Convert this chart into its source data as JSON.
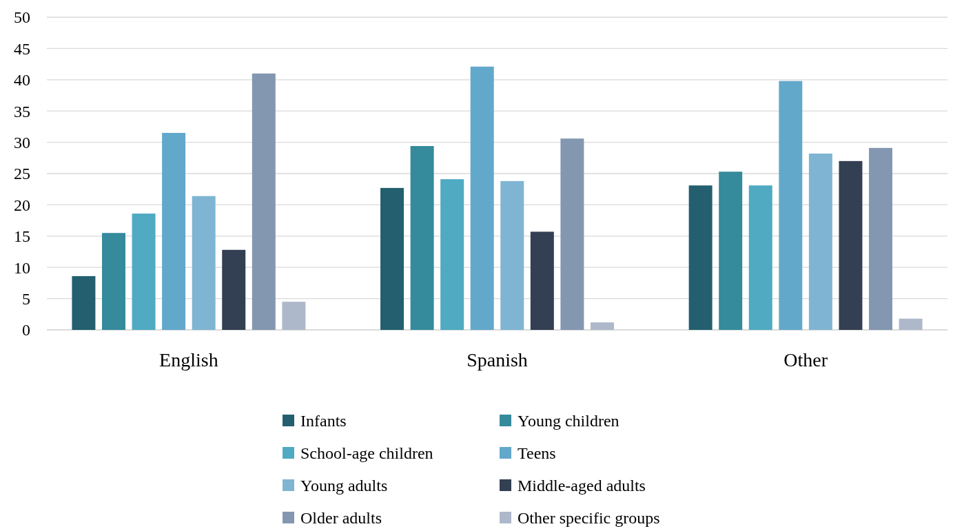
{
  "chart_data": {
    "type": "bar",
    "categories": [
      "English",
      "Spanish",
      "Other"
    ],
    "series": [
      {
        "name": "Infants",
        "color": "#235f6e",
        "values": [
          8.6,
          22.7,
          23.1
        ]
      },
      {
        "name": "Young children",
        "color": "#358a9c",
        "values": [
          15.5,
          29.4,
          25.3
        ]
      },
      {
        "name": "School-age children",
        "color": "#4faac2",
        "values": [
          18.6,
          24.1,
          23.1
        ]
      },
      {
        "name": "Teens",
        "color": "#62a8cb",
        "values": [
          31.5,
          42.1,
          39.8
        ]
      },
      {
        "name": "Young adults",
        "color": "#7fb5d3",
        "values": [
          21.4,
          23.8,
          28.2
        ]
      },
      {
        "name": "Middle-aged adults",
        "color": "#333f52",
        "values": [
          12.8,
          15.7,
          27.0
        ]
      },
      {
        "name": "Older adults",
        "color": "#8497b0",
        "values": [
          41.0,
          30.6,
          29.1
        ]
      },
      {
        "name": "Other specific groups",
        "color": "#adb9ca",
        "values": [
          4.5,
          1.2,
          1.8
        ]
      }
    ],
    "ylim": [
      0,
      50
    ],
    "yticks": [
      0,
      5,
      10,
      15,
      20,
      25,
      30,
      35,
      40,
      45,
      50
    ],
    "grid": "y",
    "legend": "bottom"
  }
}
